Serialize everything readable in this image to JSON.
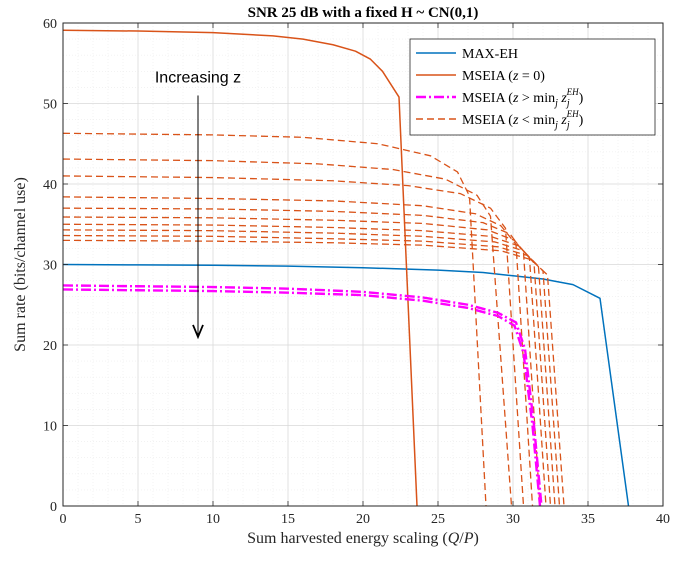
{
  "chart_data": {
    "type": "line",
    "title": "SNR 25 dB with a fixed H ~ CN(0,1)",
    "xlabel": "Sum harvested energy scaling (Q/P)",
    "ylabel": "Sum rate (bits/channel use)",
    "xlim": [
      0,
      40
    ],
    "ylim": [
      0,
      60
    ],
    "xticks": [
      0,
      5,
      10,
      15,
      20,
      25,
      30,
      35,
      40
    ],
    "yticks": [
      0,
      10,
      20,
      30,
      40,
      50,
      60
    ],
    "grid": true,
    "legend_placement": "top-right",
    "annotation": {
      "text": "Increasing z",
      "arrow_from": [
        9,
        51
      ],
      "arrow_to": [
        9,
        21
      ]
    },
    "legend": [
      {
        "label": "MAX-EH",
        "style": "solid",
        "color": "#0072BD"
      },
      {
        "label": "MSEIA (z = 0)",
        "style": "solid",
        "color": "#D95319"
      },
      {
        "label": "MSEIA (z > min_j z_j^EH)",
        "style": "dashdot",
        "color": "#FF00FF"
      },
      {
        "label": "MSEIA (z < min_j z_j^EH)",
        "style": "dashed",
        "color": "#D95319"
      }
    ],
    "series": [
      {
        "group": "max-eh",
        "color": "#0072BD",
        "style": "solid",
        "width": 1.5,
        "points": [
          [
            0,
            30
          ],
          [
            5,
            29.95
          ],
          [
            10,
            29.9
          ],
          [
            15,
            29.8
          ],
          [
            20,
            29.6
          ],
          [
            25,
            29.3
          ],
          [
            28,
            29
          ],
          [
            30,
            28.6
          ],
          [
            32,
            28.2
          ],
          [
            34,
            27.5
          ],
          [
            35.8,
            25.8
          ],
          [
            37.7,
            0
          ]
        ]
      },
      {
        "group": "mseia-z0",
        "color": "#D95319",
        "style": "solid",
        "width": 1.5,
        "points": [
          [
            0,
            59.1
          ],
          [
            5,
            59
          ],
          [
            10,
            58.8
          ],
          [
            14,
            58.4
          ],
          [
            16,
            58
          ],
          [
            18,
            57.3
          ],
          [
            19.5,
            56.5
          ],
          [
            20.5,
            55.5
          ],
          [
            21.3,
            54
          ],
          [
            22.4,
            50.8
          ],
          [
            23.6,
            0
          ]
        ]
      },
      {
        "group": "mseia-below",
        "color": "#D95319",
        "style": "dashed",
        "width": 1.3,
        "points": [
          [
            0,
            46.3
          ],
          [
            10,
            46.1
          ],
          [
            16,
            45.8
          ],
          [
            21,
            45
          ],
          [
            24.5,
            43.5
          ],
          [
            26.3,
            41.5
          ],
          [
            27.1,
            38.5
          ],
          [
            28.2,
            0
          ]
        ]
      },
      {
        "group": "mseia-below",
        "color": "#D95319",
        "style": "dashed",
        "width": 1.3,
        "points": [
          [
            0,
            43.1
          ],
          [
            10,
            42.9
          ],
          [
            17,
            42.5
          ],
          [
            22,
            41.8
          ],
          [
            25.5,
            40.6
          ],
          [
            27.6,
            38.6
          ],
          [
            28.5,
            36
          ],
          [
            29.9,
            0
          ]
        ]
      },
      {
        "group": "mseia-below",
        "color": "#D95319",
        "style": "dashed",
        "width": 1.3,
        "points": [
          [
            0,
            41
          ],
          [
            10,
            40.8
          ],
          [
            18,
            40.4
          ],
          [
            23,
            39.8
          ],
          [
            26.5,
            38.8
          ],
          [
            28.5,
            37
          ],
          [
            29.5,
            34.5
          ],
          [
            30.7,
            0
          ]
        ]
      },
      {
        "group": "mseia-below",
        "color": "#D95319",
        "style": "dashed",
        "width": 1.3,
        "points": [
          [
            0,
            38.4
          ],
          [
            10,
            38.2
          ],
          [
            18,
            37.9
          ],
          [
            24,
            37.3
          ],
          [
            27.5,
            36.3
          ],
          [
            29.2,
            34.8
          ],
          [
            30.2,
            32.5
          ],
          [
            31.3,
            0
          ]
        ]
      },
      {
        "group": "mseia-below",
        "color": "#D95319",
        "style": "dashed",
        "width": 1.3,
        "points": [
          [
            0,
            37
          ],
          [
            10,
            36.9
          ],
          [
            18,
            36.6
          ],
          [
            24,
            36.1
          ],
          [
            28,
            35.2
          ],
          [
            29.8,
            33.8
          ],
          [
            30.7,
            31.5
          ],
          [
            31.8,
            0
          ]
        ]
      },
      {
        "group": "mseia-below",
        "color": "#D95319",
        "style": "dashed",
        "width": 1.3,
        "points": [
          [
            0,
            35.9
          ],
          [
            10,
            35.8
          ],
          [
            18,
            35.5
          ],
          [
            24,
            35.1
          ],
          [
            28.3,
            34.3
          ],
          [
            30.1,
            33
          ],
          [
            31.1,
            30.8
          ],
          [
            32.2,
            0
          ]
        ]
      },
      {
        "group": "mseia-below",
        "color": "#D95319",
        "style": "dashed",
        "width": 1.3,
        "points": [
          [
            0,
            35
          ],
          [
            10,
            34.9
          ],
          [
            18,
            34.6
          ],
          [
            24,
            34.2
          ],
          [
            28.5,
            33.5
          ],
          [
            30.4,
            32.3
          ],
          [
            31.4,
            30.2
          ],
          [
            32.5,
            0
          ]
        ]
      },
      {
        "group": "mseia-below",
        "color": "#D95319",
        "style": "dashed",
        "width": 1.3,
        "points": [
          [
            0,
            34.3
          ],
          [
            10,
            34.2
          ],
          [
            18,
            33.9
          ],
          [
            24,
            33.5
          ],
          [
            28.8,
            32.8
          ],
          [
            30.7,
            31.7
          ],
          [
            31.7,
            29.7
          ],
          [
            32.8,
            0
          ]
        ]
      },
      {
        "group": "mseia-below",
        "color": "#D95319",
        "style": "dashed",
        "width": 1.3,
        "points": [
          [
            0,
            33.6
          ],
          [
            10,
            33.5
          ],
          [
            18,
            33.2
          ],
          [
            24,
            32.9
          ],
          [
            29,
            32.2
          ],
          [
            31,
            31.1
          ],
          [
            32,
            29.2
          ],
          [
            33.1,
            0
          ]
        ]
      },
      {
        "group": "mseia-below",
        "color": "#D95319",
        "style": "dashed",
        "width": 1.3,
        "points": [
          [
            0,
            33
          ],
          [
            10,
            32.9
          ],
          [
            18,
            32.7
          ],
          [
            24,
            32.4
          ],
          [
            29.2,
            31.7
          ],
          [
            31.2,
            30.6
          ],
          [
            32.3,
            28.7
          ],
          [
            33.4,
            0
          ]
        ]
      },
      {
        "group": "mseia-above",
        "color": "#FF00FF",
        "style": "dashdot",
        "width": 2.4,
        "points": [
          [
            0,
            27.4
          ],
          [
            5,
            27.3
          ],
          [
            10,
            27.2
          ],
          [
            15,
            27
          ],
          [
            20,
            26.6
          ],
          [
            24,
            25.9
          ],
          [
            27,
            25
          ],
          [
            29,
            24
          ],
          [
            30.2,
            22.8
          ],
          [
            30.8,
            19.5
          ],
          [
            31.4,
            10
          ],
          [
            31.9,
            0
          ]
        ]
      },
      {
        "group": "mseia-above",
        "color": "#FF00FF",
        "style": "dashdot",
        "width": 2.4,
        "points": [
          [
            0,
            26.9
          ],
          [
            5,
            26.8
          ],
          [
            10,
            26.7
          ],
          [
            15,
            26.5
          ],
          [
            20,
            26.2
          ],
          [
            24,
            25.5
          ],
          [
            27,
            24.6
          ],
          [
            29,
            23.6
          ],
          [
            30.1,
            22.4
          ],
          [
            30.7,
            19
          ],
          [
            31.3,
            10
          ],
          [
            31.8,
            0
          ]
        ]
      }
    ]
  }
}
